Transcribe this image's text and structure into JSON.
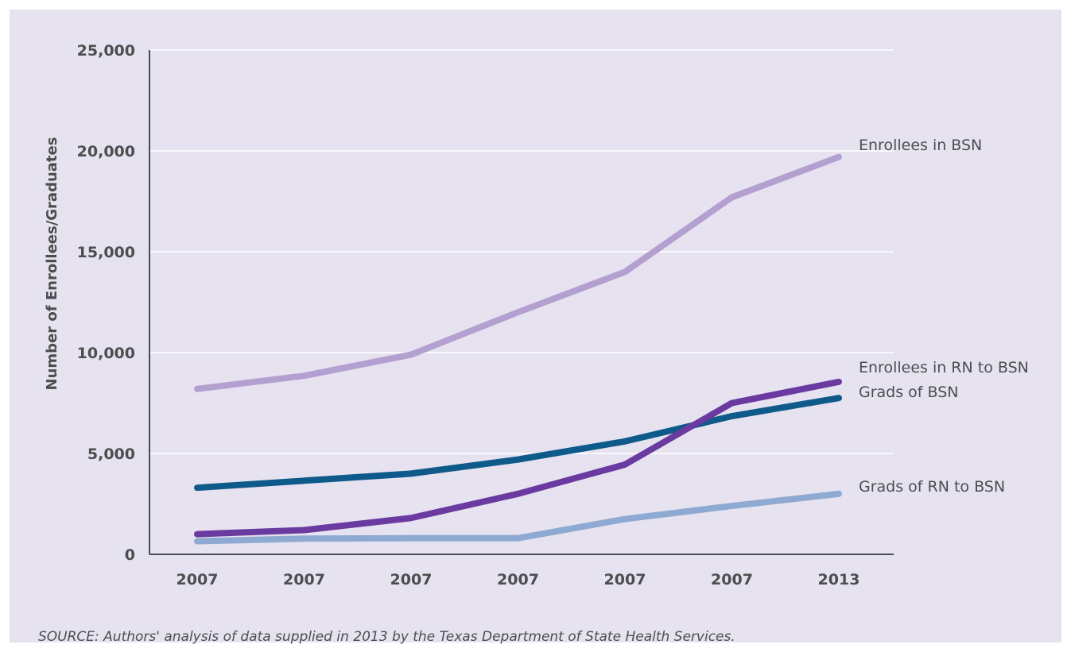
{
  "chart_data": {
    "type": "line",
    "title": "",
    "xlabel": "",
    "ylabel": "Number of Enrollees/Graduates",
    "categories": [
      "2007",
      "2007",
      "2007",
      "2007",
      "2007",
      "2007",
      "2013"
    ],
    "ylim": [
      0,
      25000
    ],
    "yticks": [
      0,
      5000,
      10000,
      15000,
      20000,
      25000
    ],
    "ytick_labels": [
      "0",
      "5,000",
      "10,000",
      "15,000",
      "20,000",
      "25,000"
    ],
    "grid": true,
    "legend": "direct labels at right end of each line",
    "series": [
      {
        "name": "Enrollees in BSN",
        "color": "#b3a0d0",
        "values": [
          8200,
          8850,
          9900,
          12000,
          14000,
          17700,
          19700
        ]
      },
      {
        "name": "Enrollees in RN to BSN",
        "color": "#6a3aa0",
        "values": [
          1000,
          1200,
          1800,
          3000,
          4450,
          7500,
          8550
        ]
      },
      {
        "name": "Grads of BSN",
        "color": "#0e5a8a",
        "values": [
          3300,
          3650,
          4000,
          4700,
          5600,
          6850,
          7750
        ]
      },
      {
        "name": "Grads of RN to BSN",
        "color": "#8eaad2",
        "values": [
          650,
          780,
          800,
          800,
          1750,
          2400,
          3000
        ]
      }
    ]
  },
  "source_note": "SOURCE: Authors' analysis of data supplied in 2013 by the Texas Department of State Health Services."
}
